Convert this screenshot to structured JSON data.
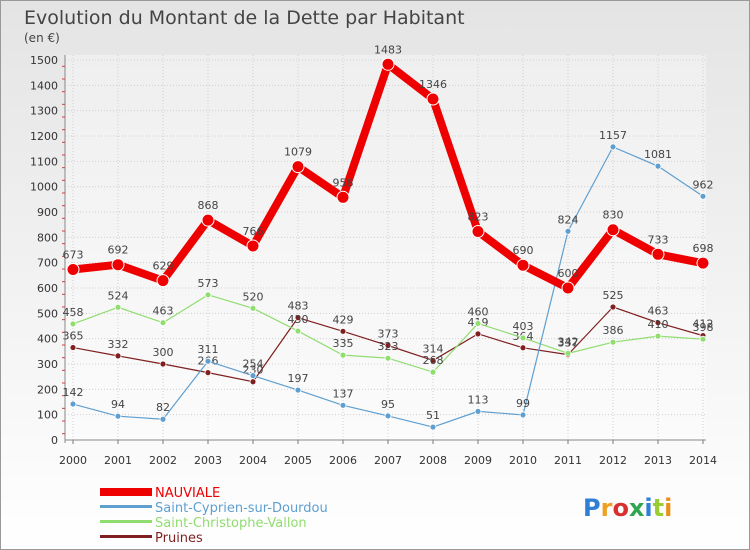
{
  "chart_data": {
    "type": "line",
    "title": "Evolution du Montant de la Dette par Habitant",
    "subtitle": "(en €)",
    "xlabel": "",
    "ylabel": "",
    "x": [
      "2000",
      "2001",
      "2002",
      "2003",
      "2004",
      "2005",
      "2006",
      "2007",
      "2008",
      "2009",
      "2010",
      "2011",
      "2012",
      "2013",
      "2014"
    ],
    "ylim": [
      0,
      1500
    ],
    "yticks": [
      0,
      100,
      200,
      300,
      400,
      500,
      600,
      700,
      800,
      900,
      1000,
      1100,
      1200,
      1300,
      1400,
      1500
    ],
    "grid": true,
    "legend_position": "bottom-left",
    "series": [
      {
        "name": "NAUVIALE",
        "color": "#ee0000",
        "values": [
          673,
          692,
          629,
          868,
          766,
          1079,
          958,
          1483,
          1346,
          823,
          690,
          600,
          830,
          733,
          698
        ]
      },
      {
        "name": "Saint-Cyprien-sur-Dourdou",
        "color": "#5f9fcf",
        "values": [
          142,
          94,
          82,
          311,
          254,
          197,
          137,
          95,
          51,
          113,
          99,
          824,
          1157,
          1081,
          962
        ]
      },
      {
        "name": "Saint-Christophe-Vallon",
        "color": "#90dd70",
        "values": [
          458,
          524,
          463,
          573,
          520,
          430,
          335,
          323,
          268,
          460,
          403,
          342,
          386,
          410,
          398
        ]
      },
      {
        "name": "Pruines",
        "color": "#7f1f1f",
        "values": [
          365,
          332,
          300,
          266,
          230,
          483,
          429,
          373,
          314,
          419,
          364,
          337,
          525,
          463,
          412
        ]
      }
    ]
  },
  "brand": {
    "logo_text": "Proxiti",
    "colors": [
      "#2f7fd6",
      "#f0a020",
      "#d83030",
      "#2fa64f",
      "#2f7fd6",
      "#9acd32",
      "#e8901c"
    ]
  }
}
